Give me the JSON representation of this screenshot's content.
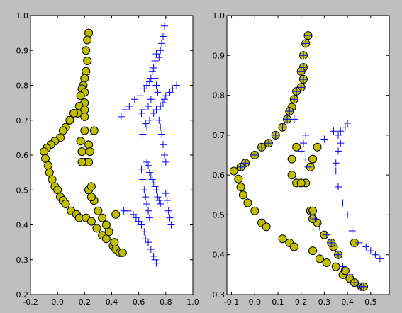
{
  "figure": {
    "background": "#bfbfbf"
  },
  "style": {
    "circle_fill": "#bfbf00",
    "circle_edge": "#000000",
    "cross_color": "#0000ff",
    "axes_bg": "#ffffff"
  },
  "chart_data": [
    {
      "type": "scatter",
      "xlim": [
        -0.2,
        1.0
      ],
      "ylim": [
        0.2,
        1.0
      ],
      "xticks": [
        "-0.2",
        "0.0",
        "0.2",
        "0.4",
        "0.6",
        "0.8",
        "1.0"
      ],
      "yticks": [
        "0.2",
        "0.3",
        "0.4",
        "0.5",
        "0.6",
        "0.7",
        "0.8",
        "0.9",
        "1.0"
      ],
      "series": [
        {
          "marker": "circle",
          "points": [
            [
              0.23,
              0.95
            ],
            [
              0.22,
              0.93
            ],
            [
              0.21,
              0.9
            ],
            [
              0.22,
              0.87
            ],
            [
              0.21,
              0.84
            ],
            [
              0.2,
              0.82
            ],
            [
              0.19,
              0.8
            ],
            [
              0.18,
              0.79
            ],
            [
              0.2,
              0.78
            ],
            [
              0.17,
              0.77
            ],
            [
              0.2,
              0.75
            ],
            [
              0.16,
              0.74
            ],
            [
              0.2,
              0.73
            ],
            [
              0.15,
              0.72
            ],
            [
              0.2,
              0.71
            ],
            [
              0.12,
              0.72
            ],
            [
              0.09,
              0.7
            ],
            [
              0.06,
              0.68
            ],
            [
              0.04,
              0.67
            ],
            [
              0.02,
              0.65
            ],
            [
              -0.02,
              0.64
            ],
            [
              -0.05,
              0.63
            ],
            [
              -0.08,
              0.62
            ],
            [
              -0.1,
              0.61
            ],
            [
              -0.09,
              0.59
            ],
            [
              -0.07,
              0.57
            ],
            [
              -0.06,
              0.55
            ],
            [
              -0.04,
              0.53
            ],
            [
              -0.02,
              0.51
            ],
            [
              0.0,
              0.5
            ],
            [
              0.02,
              0.48
            ],
            [
              0.04,
              0.47
            ],
            [
              0.06,
              0.46
            ],
            [
              0.1,
              0.44
            ],
            [
              0.14,
              0.43
            ],
            [
              0.16,
              0.42
            ],
            [
              0.21,
              0.42
            ],
            [
              0.25,
              0.41
            ],
            [
              0.29,
              0.39
            ],
            [
              0.33,
              0.37
            ],
            [
              0.36,
              0.36
            ],
            [
              0.41,
              0.34
            ],
            [
              0.43,
              0.33
            ],
            [
              0.46,
              0.32
            ],
            [
              0.48,
              0.32
            ],
            [
              0.42,
              0.35
            ],
            [
              0.38,
              0.38
            ],
            [
              0.36,
              0.4
            ],
            [
              0.33,
              0.42
            ],
            [
              0.3,
              0.44
            ],
            [
              0.27,
              0.47
            ],
            [
              0.25,
              0.48
            ],
            [
              0.23,
              0.5
            ],
            [
              0.25,
              0.51
            ],
            [
              0.43,
              0.43
            ],
            [
              0.2,
              0.67
            ],
            [
              0.27,
              0.67
            ],
            [
              0.17,
              0.64
            ],
            [
              0.23,
              0.63
            ],
            [
              0.24,
              0.61
            ],
            [
              0.18,
              0.61
            ],
            [
              0.21,
              0.58
            ],
            [
              0.23,
              0.58
            ],
            [
              0.18,
              0.58
            ]
          ]
        },
        {
          "marker": "cross",
          "points": [
            [
              0.8,
              1.0
            ],
            [
              0.79,
              0.97
            ],
            [
              0.78,
              0.94
            ],
            [
              0.77,
              0.92
            ],
            [
              0.76,
              0.9
            ],
            [
              0.75,
              0.88
            ],
            [
              0.73,
              0.89
            ],
            [
              0.72,
              0.87
            ],
            [
              0.71,
              0.85
            ],
            [
              0.7,
              0.84
            ],
            [
              0.69,
              0.82
            ],
            [
              0.68,
              0.81
            ],
            [
              0.66,
              0.8
            ],
            [
              0.64,
              0.79
            ],
            [
              0.61,
              0.77
            ],
            [
              0.57,
              0.76
            ],
            [
              0.53,
              0.74
            ],
            [
              0.5,
              0.73
            ],
            [
              0.47,
              0.71
            ],
            [
              0.72,
              0.82
            ],
            [
              0.73,
              0.8
            ],
            [
              0.74,
              0.78
            ],
            [
              0.69,
              0.76
            ],
            [
              0.67,
              0.74
            ],
            [
              0.63,
              0.73
            ],
            [
              0.62,
              0.72
            ],
            [
              0.88,
              0.8
            ],
            [
              0.85,
              0.79
            ],
            [
              0.83,
              0.78
            ],
            [
              0.8,
              0.77
            ],
            [
              0.79,
              0.76
            ],
            [
              0.78,
              0.75
            ],
            [
              0.76,
              0.74
            ],
            [
              0.73,
              0.73
            ],
            [
              0.71,
              0.72
            ],
            [
              0.68,
              0.7
            ],
            [
              0.65,
              0.69
            ],
            [
              0.66,
              0.68
            ],
            [
              0.63,
              0.66
            ],
            [
              0.75,
              0.7
            ],
            [
              0.76,
              0.68
            ],
            [
              0.77,
              0.66
            ],
            [
              0.78,
              0.63
            ],
            [
              0.79,
              0.6
            ],
            [
              0.8,
              0.58
            ],
            [
              0.66,
              0.58
            ],
            [
              0.67,
              0.57
            ],
            [
              0.68,
              0.55
            ],
            [
              0.69,
              0.54
            ],
            [
              0.7,
              0.53
            ],
            [
              0.71,
              0.52
            ],
            [
              0.72,
              0.51
            ],
            [
              0.73,
              0.5
            ],
            [
              0.74,
              0.48
            ],
            [
              0.75,
              0.47
            ],
            [
              0.76,
              0.46
            ],
            [
              0.62,
              0.56
            ],
            [
              0.63,
              0.53
            ],
            [
              0.64,
              0.5
            ],
            [
              0.65,
              0.48
            ],
            [
              0.66,
              0.46
            ],
            [
              0.67,
              0.44
            ],
            [
              0.68,
              0.42
            ],
            [
              0.8,
              0.49
            ],
            [
              0.81,
              0.47
            ],
            [
              0.82,
              0.44
            ],
            [
              0.83,
              0.42
            ],
            [
              0.84,
              0.4
            ],
            [
              0.49,
              0.44
            ],
            [
              0.52,
              0.44
            ],
            [
              0.56,
              0.43
            ],
            [
              0.58,
              0.42
            ],
            [
              0.6,
              0.41
            ],
            [
              0.62,
              0.4
            ],
            [
              0.64,
              0.38
            ],
            [
              0.65,
              0.36
            ],
            [
              0.67,
              0.35
            ],
            [
              0.69,
              0.33
            ],
            [
              0.71,
              0.31
            ],
            [
              0.72,
              0.3
            ],
            [
              0.73,
              0.29
            ]
          ]
        }
      ]
    },
    {
      "type": "scatter",
      "xlim": [
        -0.12,
        0.58
      ],
      "ylim": [
        0.3,
        1.0
      ],
      "xticks": [
        "-0.1",
        "0.0",
        "0.1",
        "0.2",
        "0.3",
        "0.4",
        "0.5"
      ],
      "xtick_values": [
        -0.1,
        0.0,
        0.1,
        0.2,
        0.3,
        0.4,
        0.5
      ],
      "yticks": [
        "0.3",
        "0.4",
        "0.5",
        "0.6",
        "0.7",
        "0.8",
        "0.9",
        "1.0"
      ],
      "series": [
        {
          "marker": "circle",
          "points": [
            [
              0.23,
              0.95
            ],
            [
              0.22,
              0.93
            ],
            [
              0.21,
              0.9
            ],
            [
              0.21,
              0.87
            ],
            [
              0.2,
              0.86
            ],
            [
              0.21,
              0.84
            ],
            [
              0.2,
              0.82
            ],
            [
              0.18,
              0.81
            ],
            [
              0.17,
              0.79
            ],
            [
              0.16,
              0.77
            ],
            [
              0.15,
              0.76
            ],
            [
              0.14,
              0.74
            ],
            [
              0.12,
              0.72
            ],
            [
              0.09,
              0.7
            ],
            [
              0.06,
              0.68
            ],
            [
              0.03,
              0.67
            ],
            [
              0.0,
              0.65
            ],
            [
              -0.04,
              0.63
            ],
            [
              -0.06,
              0.62
            ],
            [
              -0.09,
              0.61
            ],
            [
              -0.07,
              0.59
            ],
            [
              -0.06,
              0.57
            ],
            [
              -0.05,
              0.55
            ],
            [
              -0.03,
              0.53
            ],
            [
              0.0,
              0.51
            ],
            [
              0.03,
              0.48
            ],
            [
              0.05,
              0.47
            ],
            [
              0.12,
              0.44
            ],
            [
              0.15,
              0.43
            ],
            [
              0.17,
              0.42
            ],
            [
              0.25,
              0.41
            ],
            [
              0.28,
              0.39
            ],
            [
              0.31,
              0.38
            ],
            [
              0.35,
              0.37
            ],
            [
              0.38,
              0.35
            ],
            [
              0.41,
              0.34
            ],
            [
              0.43,
              0.33
            ],
            [
              0.46,
              0.32
            ],
            [
              0.47,
              0.32
            ],
            [
              0.39,
              0.36
            ],
            [
              0.36,
              0.4
            ],
            [
              0.34,
              0.42
            ],
            [
              0.33,
              0.43
            ],
            [
              0.3,
              0.45
            ],
            [
              0.27,
              0.48
            ],
            [
              0.25,
              0.49
            ],
            [
              0.24,
              0.51
            ],
            [
              0.25,
              0.51
            ],
            [
              0.43,
              0.43
            ],
            [
              0.18,
              0.67
            ],
            [
              0.27,
              0.67
            ],
            [
              0.16,
              0.64
            ],
            [
              0.25,
              0.64
            ],
            [
              0.24,
              0.62
            ],
            [
              0.16,
              0.6
            ],
            [
              0.18,
              0.58
            ],
            [
              0.22,
              0.58
            ],
            [
              0.2,
              0.58
            ]
          ]
        },
        {
          "marker": "cross",
          "points": [
            [
              0.23,
              0.95
            ],
            [
              0.22,
              0.93
            ],
            [
              0.21,
              0.9
            ],
            [
              0.21,
              0.87
            ],
            [
              0.2,
              0.86
            ],
            [
              0.21,
              0.84
            ],
            [
              0.2,
              0.82
            ],
            [
              0.18,
              0.81
            ],
            [
              0.17,
              0.79
            ],
            [
              0.15,
              0.76
            ],
            [
              0.14,
              0.74
            ],
            [
              0.17,
              0.74
            ],
            [
              0.12,
              0.72
            ],
            [
              0.09,
              0.7
            ],
            [
              0.06,
              0.68
            ],
            [
              0.03,
              0.67
            ],
            [
              0.0,
              0.65
            ],
            [
              -0.04,
              0.63
            ],
            [
              -0.06,
              0.62
            ],
            [
              0.22,
              0.7
            ],
            [
              0.21,
              0.68
            ],
            [
              0.2,
              0.66
            ],
            [
              0.22,
              0.64
            ],
            [
              0.23,
              0.62
            ],
            [
              0.3,
              0.69
            ],
            [
              0.34,
              0.71
            ],
            [
              0.37,
              0.71
            ],
            [
              0.39,
              0.72
            ],
            [
              0.4,
              0.73
            ],
            [
              0.36,
              0.7
            ],
            [
              0.37,
              0.68
            ],
            [
              0.36,
              0.66
            ],
            [
              0.35,
              0.63
            ],
            [
              0.35,
              0.61
            ],
            [
              0.36,
              0.57
            ],
            [
              0.38,
              0.53
            ],
            [
              0.4,
              0.5
            ],
            [
              0.42,
              0.46
            ],
            [
              0.45,
              0.43
            ],
            [
              0.48,
              0.42
            ],
            [
              0.5,
              0.41
            ],
            [
              0.52,
              0.4
            ],
            [
              0.54,
              0.39
            ],
            [
              0.24,
              0.5
            ],
            [
              0.26,
              0.49
            ],
            [
              0.28,
              0.47
            ],
            [
              0.31,
              0.45
            ],
            [
              0.33,
              0.43
            ],
            [
              0.36,
              0.4
            ],
            [
              0.38,
              0.37
            ],
            [
              0.41,
              0.35
            ],
            [
              0.43,
              0.33
            ],
            [
              0.46,
              0.32
            ],
            [
              0.47,
              0.32
            ]
          ]
        }
      ]
    }
  ]
}
